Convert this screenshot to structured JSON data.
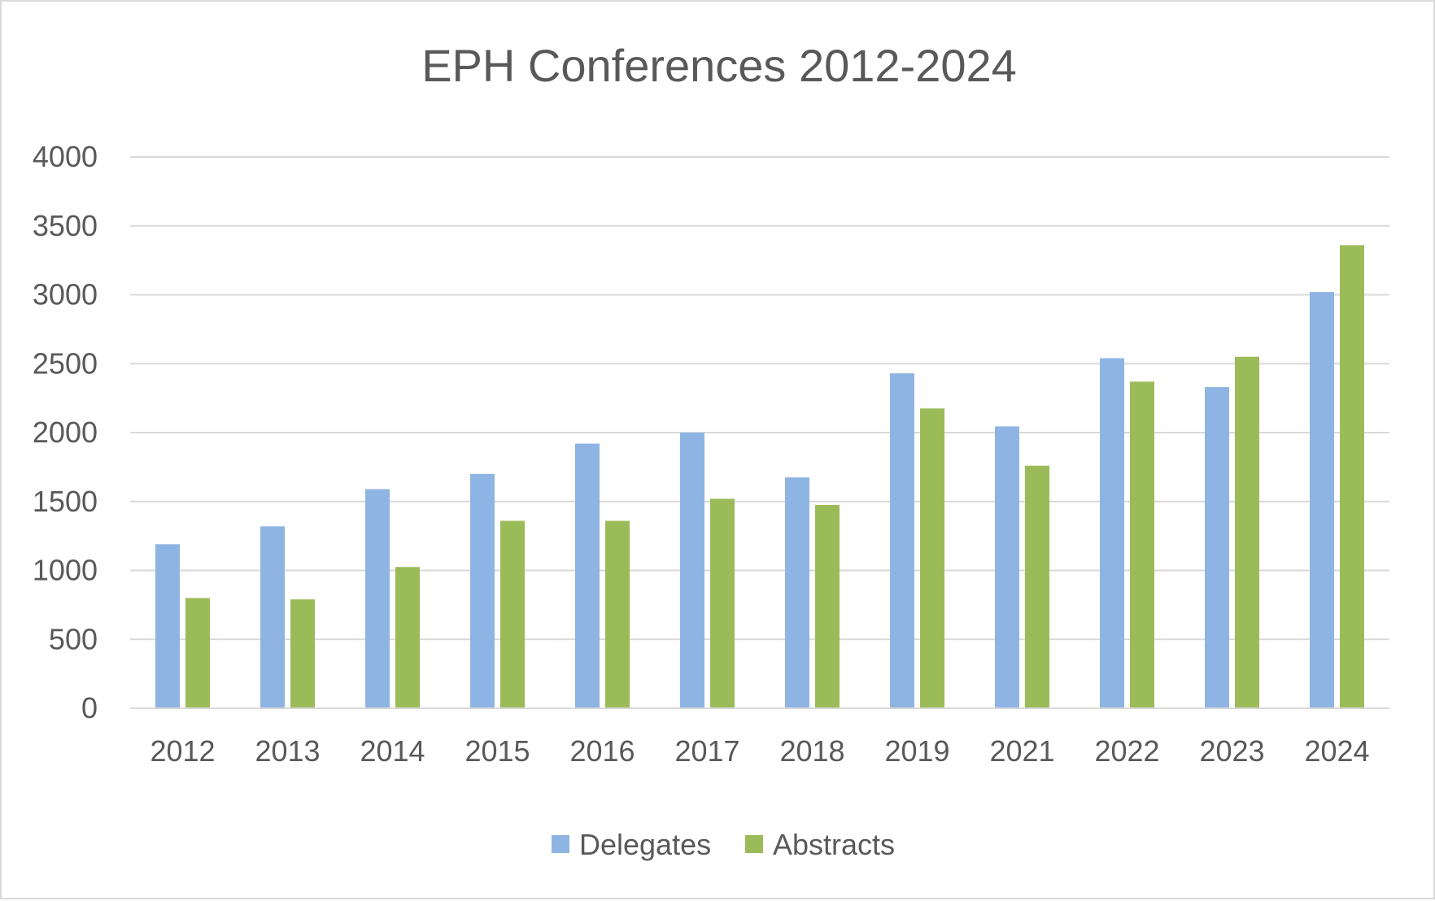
{
  "chart_data": {
    "type": "bar",
    "title": "EPH Conferences 2012-2024",
    "xlabel": "",
    "ylabel": "",
    "categories": [
      "2012",
      "2013",
      "2014",
      "2015",
      "2016",
      "2017",
      "2018",
      "2019",
      "2021",
      "2022",
      "2023",
      "2024"
    ],
    "series": [
      {
        "name": "Delegates",
        "color": "#8eb4e3",
        "values": [
          1190,
          1320,
          1590,
          1700,
          1920,
          2000,
          1675,
          2430,
          2045,
          2540,
          2330,
          3020
        ]
      },
      {
        "name": "Abstracts",
        "color": "#9bbb59",
        "values": [
          800,
          790,
          1025,
          1360,
          1360,
          1520,
          1475,
          2175,
          1760,
          2370,
          2550,
          3360
        ]
      }
    ],
    "ylim": [
      0,
      4000
    ],
    "yticks": [
      "0",
      "500",
      "1000",
      "1500",
      "2000",
      "2500",
      "3000",
      "3500",
      "4000"
    ],
    "grid": true,
    "legend_position": "bottom"
  }
}
